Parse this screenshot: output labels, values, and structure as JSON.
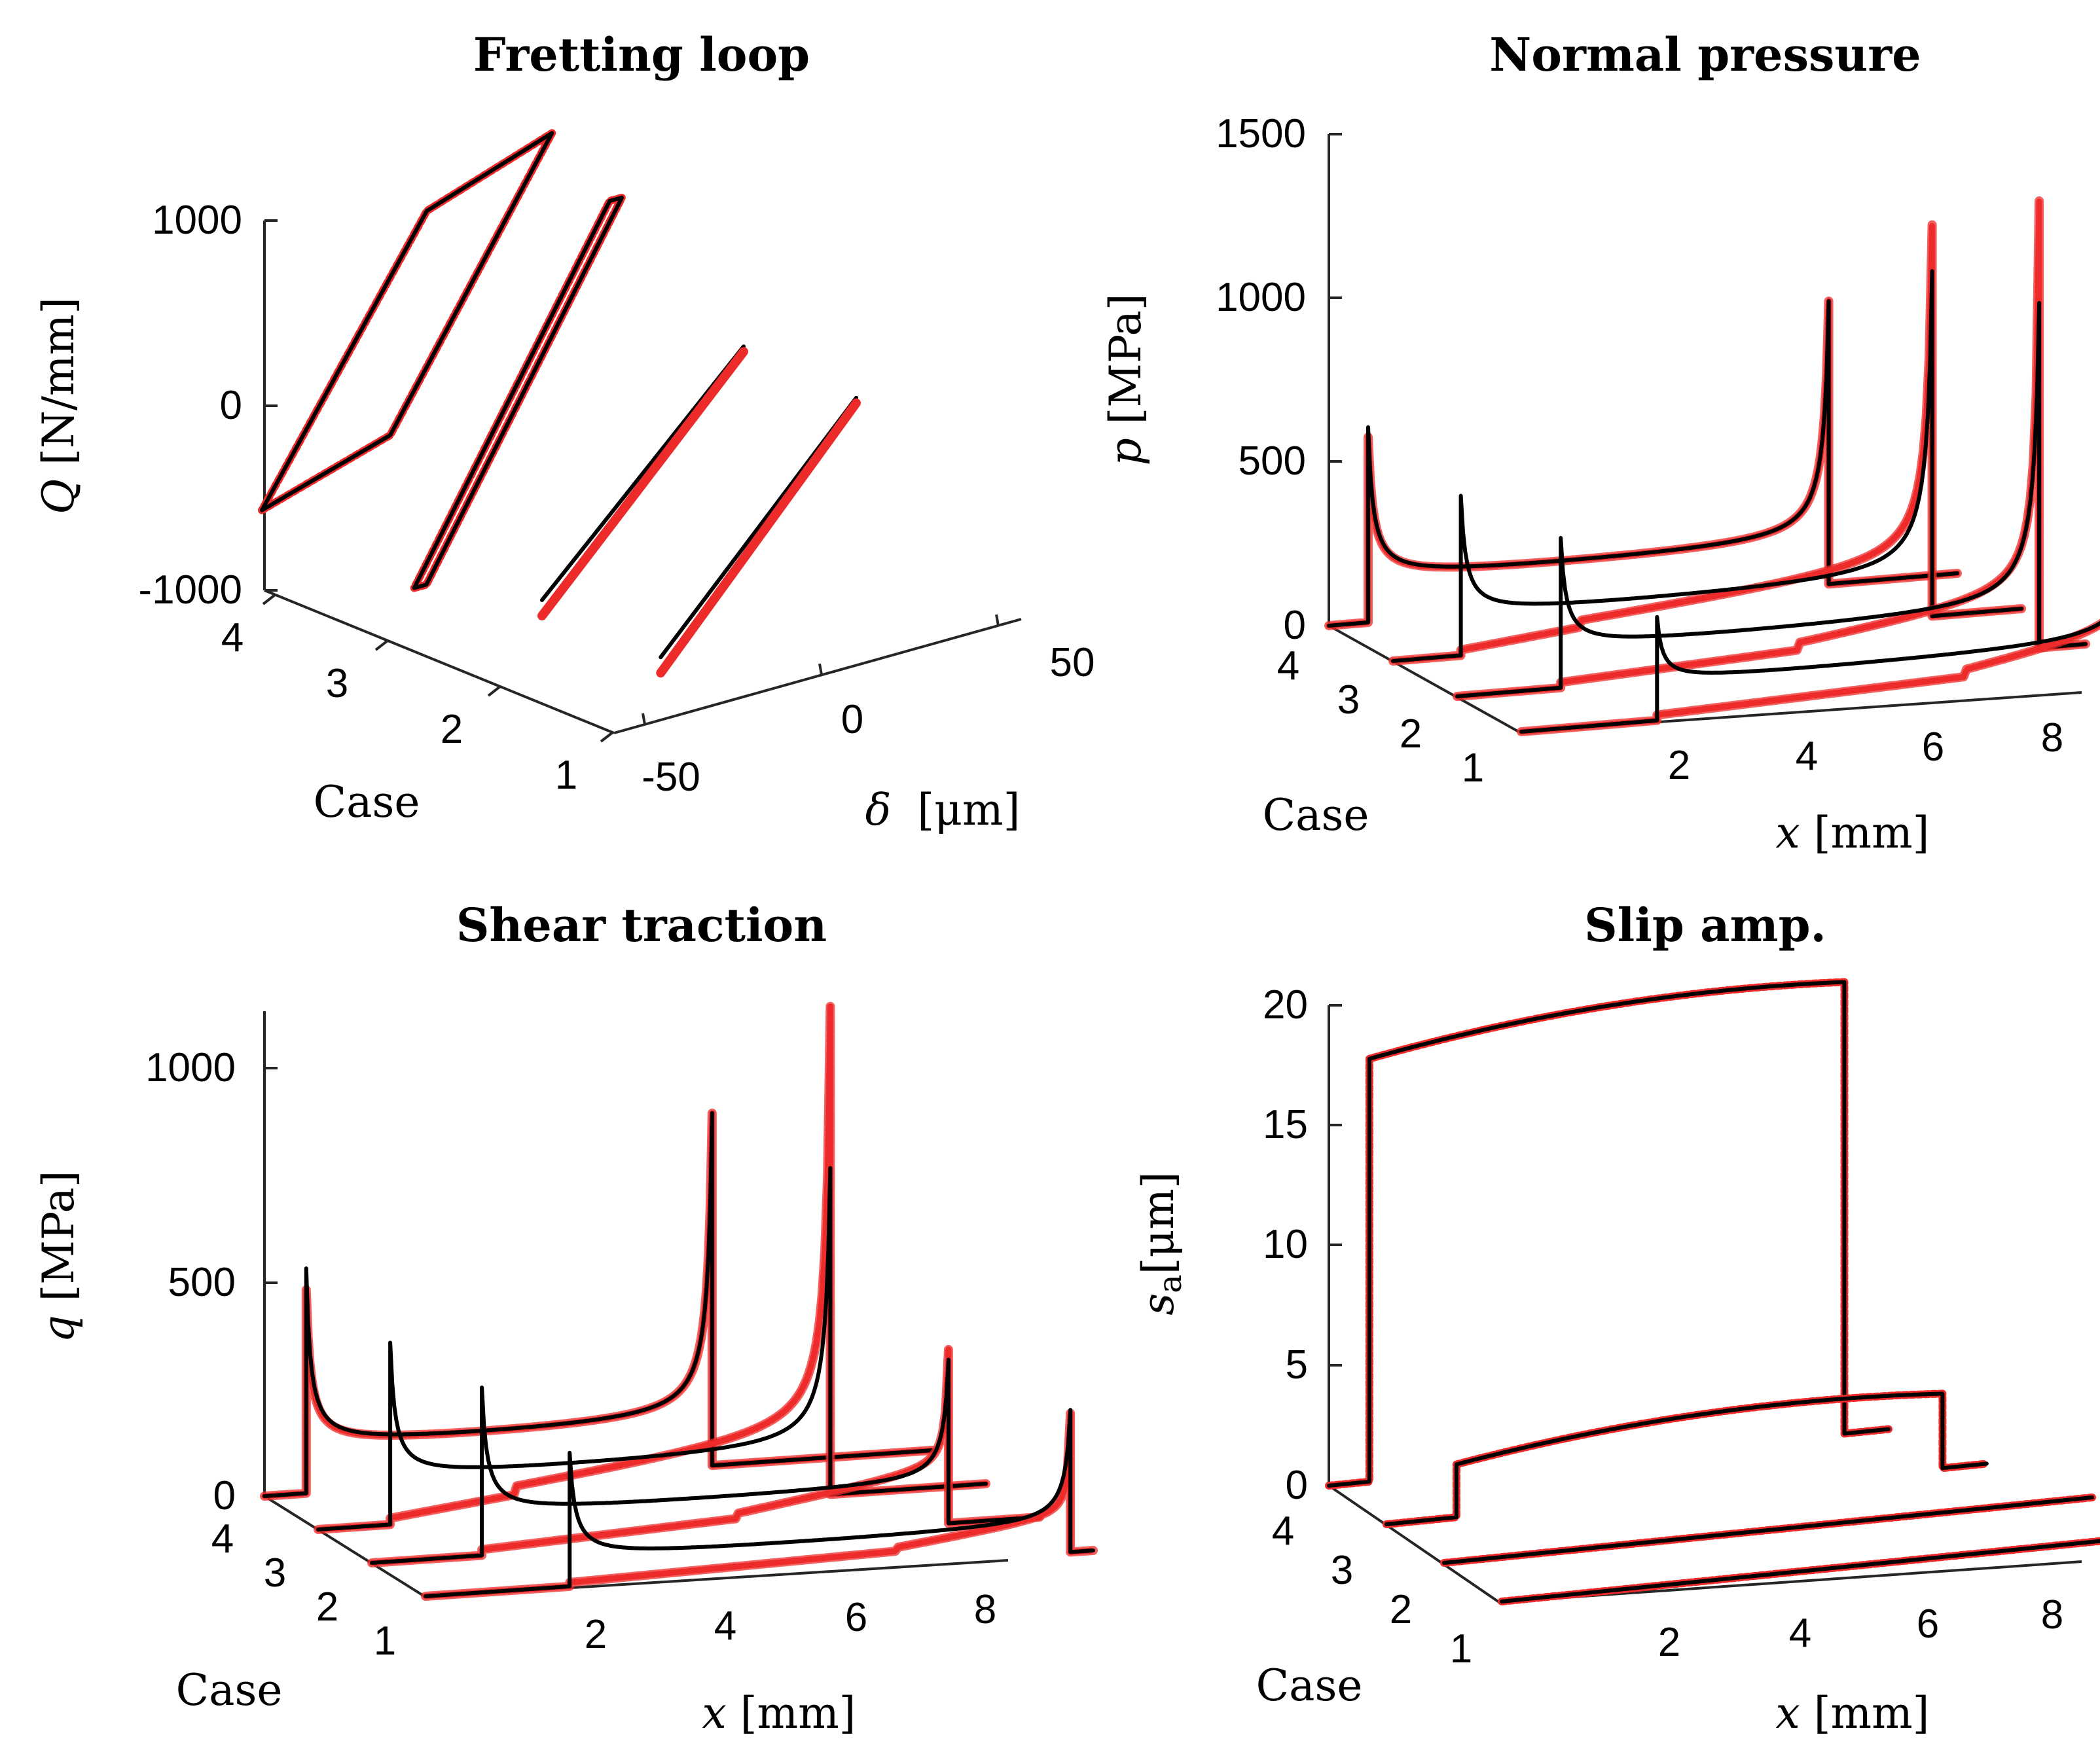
{
  "colors": {
    "model_a": "#000000",
    "model_b": "#ee2b2b"
  },
  "chart_data": [
    {
      "type": "line",
      "id": "fretting-loop",
      "title": "Fretting loop",
      "xlabel": "δ [μm]",
      "ylabel": "Q [N/mm]",
      "caselabel": "Case",
      "xlabel_sym": "δ",
      "xlabel_unit": "[μm]",
      "ylabel_sym": "Q",
      "ylabel_unit": "[N/mm]",
      "zlim": [
        -1000,
        1000
      ],
      "xlim": [
        -60,
        60
      ],
      "x_ticks": [
        "-50",
        "0",
        "50"
      ],
      "case_ticks": [
        "1",
        "2",
        "3",
        "4"
      ],
      "z_ticks": [
        "-1000",
        "0",
        "1000"
      ],
      "series": [
        {
          "name": "Case 4 loop",
          "case": 4,
          "delta": [
            -48,
            -6,
            47,
            6,
            -48
          ],
          "Q": [
            -620,
            -400,
            1000,
            760,
            -620
          ]
        },
        {
          "name": "Case 3 loop",
          "case": 3,
          "delta": [
            -35,
            -31,
            33,
            29,
            -35
          ],
          "Q": [
            -850,
            -850,
            960,
            960,
            -850
          ]
        },
        {
          "name": "Case 2 line",
          "case": 2,
          "delta": [
            -30,
            36
          ],
          "Q": [
            -690,
            390
          ]
        },
        {
          "name": "Case 1 line",
          "case": 1,
          "delta": [
            -28,
            36
          ],
          "Q": [
            -760,
            360
          ]
        }
      ]
    },
    {
      "type": "line",
      "id": "normal-pressure",
      "title": "Normal pressure",
      "xlabel": "x [mm]",
      "ylabel": "p [MPa]",
      "caselabel": "Case",
      "xlabel_sym": "x",
      "xlabel_unit": "[mm]",
      "ylabel_sym": "p",
      "ylabel_unit": "[MPa]",
      "zlim": [
        0,
        1500
      ],
      "xlim": [
        0,
        8.5
      ],
      "x_ticks": [
        "2",
        "4",
        "6",
        "8"
      ],
      "case_ticks": [
        "1",
        "2",
        "3",
        "4"
      ],
      "z_ticks": [
        "0",
        "500",
        "1000",
        "1500"
      ],
      "series": [
        {
          "name": "Case 4",
          "case": 4,
          "x_left": 0.55,
          "x_right": 7.0,
          "x_red_left": 0.55,
          "peak_left_black": 590,
          "peak_left_red": 560,
          "base": 120,
          "peak_right_black": 860,
          "peak_right_red": 860,
          "red_mid_step": null
        },
        {
          "name": "Case 3",
          "case": 3,
          "x_left": 0.95,
          "x_right": 7.55,
          "x_red_left": 2.6,
          "peak_left_black": 480,
          "peak_left_red": 0,
          "base": 110,
          "peak_right_black": 1050,
          "peak_right_red": 1150,
          "red_mid_step": 2.6
        },
        {
          "name": "Case 2",
          "case": 2,
          "x_left": 1.45,
          "x_right": 8.15,
          "x_red_left": 4.8,
          "peak_left_black": 450,
          "peak_left_red": 0,
          "base": 110,
          "peak_right_black": 1050,
          "peak_right_red": 1320,
          "red_mid_step": 4.8
        },
        {
          "name": "Case 1",
          "case": 1,
          "x_left": 1.9,
          "x_right": 8.7,
          "x_red_left": 6.2,
          "peak_left_black": 310,
          "peak_left_red": 0,
          "base": 110,
          "peak_right_black": 850,
          "peak_right_red": 1180,
          "red_mid_step": 6.2
        }
      ]
    },
    {
      "type": "line",
      "id": "shear-traction",
      "title": "Shear traction",
      "xlabel": "x [mm]",
      "ylabel": "q [MPa]",
      "caselabel": "Case",
      "xlabel_sym": "x",
      "xlabel_unit": "[mm]",
      "ylabel_sym": "q",
      "ylabel_unit": "[MPa]",
      "zlim": [
        0,
        1100
      ],
      "xlim": [
        0,
        8.5
      ],
      "x_ticks": [
        "2",
        "4",
        "6",
        "8"
      ],
      "case_ticks": [
        "1",
        "2",
        "3",
        "4"
      ],
      "z_ticks": [
        "0",
        "500",
        "1000"
      ],
      "series": [
        {
          "name": "Case 4",
          "case": 4,
          "x_left": 0.55,
          "x_right": 5.9,
          "x_red_left": 0.55,
          "peak_left_black": 520,
          "peak_left_red": 470,
          "base": 100,
          "peak_right_black": 820,
          "peak_right_red": 820,
          "red_mid_step": null
        },
        {
          "name": "Case 3",
          "case": 3,
          "x_left": 0.95,
          "x_right": 6.75,
          "x_red_left": 2.6,
          "peak_left_black": 420,
          "peak_left_red": 0,
          "base": 100,
          "peak_right_black": 760,
          "peak_right_red": 1100,
          "red_mid_step": 2.6
        },
        {
          "name": "Case 2",
          "case": 2,
          "x_left": 1.45,
          "x_right": 7.6,
          "x_red_left": 4.8,
          "peak_left_black": 390,
          "peak_left_red": 0,
          "base": 90,
          "peak_right_black": 380,
          "peak_right_red": 370,
          "red_mid_step": 4.8
        },
        {
          "name": "Case 1",
          "case": 1,
          "x_left": 1.9,
          "x_right": 8.5,
          "x_red_left": 6.2,
          "peak_left_black": 310,
          "peak_left_red": 0,
          "base": 60,
          "peak_right_black": 330,
          "peak_right_red": 300,
          "red_mid_step": 6.2
        }
      ]
    },
    {
      "type": "line",
      "id": "slip-amp",
      "title": "Slip amp.",
      "xlabel": "x [mm]",
      "ylabel": "sa [μm]",
      "caselabel": "Case",
      "xlabel_sym": "x",
      "xlabel_unit": "[mm]",
      "ylabel_sym": "s",
      "ylabel_sub": "a",
      "ylabel_unit": "[μm]",
      "zlim": [
        0,
        20
      ],
      "xlim": [
        0,
        8.5
      ],
      "x_ticks": [
        "2",
        "4",
        "6",
        "8"
      ],
      "case_ticks": [
        "1",
        "2",
        "3",
        "4"
      ],
      "z_ticks": [
        "0",
        "5",
        "10",
        "15",
        "20"
      ],
      "series": [
        {
          "name": "Case 4",
          "case": 4,
          "x_left": 0.55,
          "x_right": 7.0,
          "edge_left": 17.6,
          "mid": 19.4,
          "edge_right": 18.8
        },
        {
          "name": "Case 3",
          "case": 3,
          "x_left": 0.95,
          "x_right": 7.55,
          "edge_left": 2.2,
          "mid": 3.7,
          "edge_right": 3.1
        },
        {
          "name": "Case 2",
          "case": 2,
          "x_left": 1.45,
          "x_right": 8.15,
          "edge_left": 0,
          "mid": 0,
          "edge_right": 0
        },
        {
          "name": "Case 1",
          "case": 1,
          "x_left": 1.9,
          "x_right": 8.7,
          "edge_left": 0,
          "mid": 0,
          "edge_right": 0
        }
      ]
    }
  ]
}
